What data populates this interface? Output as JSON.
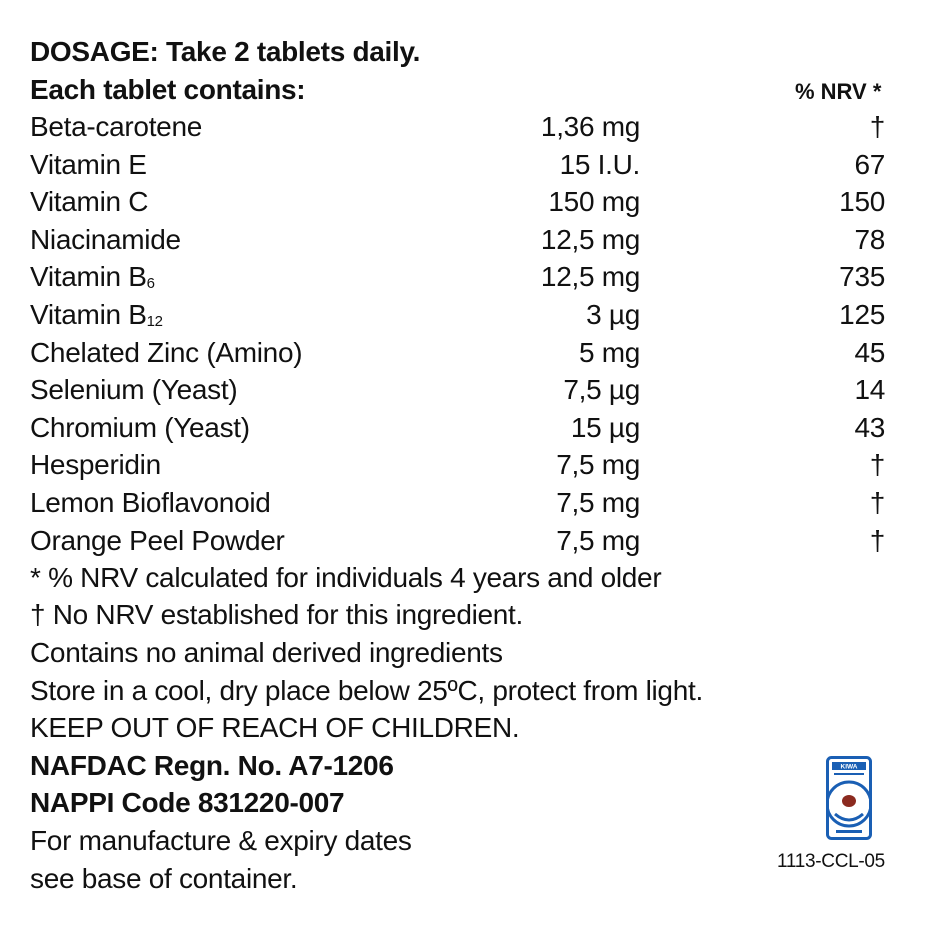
{
  "dosage": "DOSAGE: Take 2 tablets daily.",
  "each_tablet": "Each tablet contains:",
  "nrv_header": "% NRV *",
  "ingredients": [
    {
      "name": "Beta-carotene",
      "sub": "",
      "amount": "1,36 mg",
      "nrv": "†"
    },
    {
      "name": "Vitamin E",
      "sub": "",
      "amount": "15 I.U.",
      "nrv": "67"
    },
    {
      "name": "Vitamin C",
      "sub": "",
      "amount": "150 mg",
      "nrv": "150"
    },
    {
      "name": "Niacinamide",
      "sub": "",
      "amount": "12,5 mg",
      "nrv": "78"
    },
    {
      "name": "Vitamin B",
      "sub": "6",
      "amount": "12,5 mg",
      "nrv": "735"
    },
    {
      "name": "Vitamin B",
      "sub": "12",
      "amount": "3 µg",
      "nrv": "125"
    },
    {
      "name": "Chelated Zinc (Amino)",
      "sub": "",
      "amount": "5 mg",
      "nrv": "45"
    },
    {
      "name": "Selenium (Yeast)",
      "sub": "",
      "amount": "7,5 µg",
      "nrv": "14"
    },
    {
      "name": "Chromium (Yeast)",
      "sub": "",
      "amount": "15 µg",
      "nrv": "43"
    },
    {
      "name": "Hesperidin",
      "sub": "",
      "amount": "7,5 mg",
      "nrv": "†"
    },
    {
      "name": "Lemon Bioflavonoid",
      "sub": "",
      "amount": "7,5 mg",
      "nrv": "†"
    },
    {
      "name": "Orange Peel Powder",
      "sub": "",
      "amount": "7,5 mg",
      "nrv": "†"
    }
  ],
  "notes": {
    "nrv_note": "* % NRV calculated for individuals 4 years and older",
    "no_nrv": "† No NRV established for this ingredient.",
    "animal": "Contains no animal derived ingredients",
    "store": "Store in a cool, dry place below 25ºC, protect from light.",
    "keep_out": "KEEP OUT OF REACH OF CHILDREN."
  },
  "regulatory": {
    "nafdac": "NAFDAC Regn. No. A7-1206",
    "nappi": "NAPPI Code 831220-007"
  },
  "footer": {
    "manufacture_line1": "For manufacture & expiry dates",
    "manufacture_line2": "see base of container.",
    "code": "1113-CCL-05",
    "logo_icon": "certification-mark-icon",
    "logo_text": "KIWA",
    "colors": {
      "logo_blue": "#1a5fb4",
      "logo_red": "#8b2a1f"
    }
  }
}
